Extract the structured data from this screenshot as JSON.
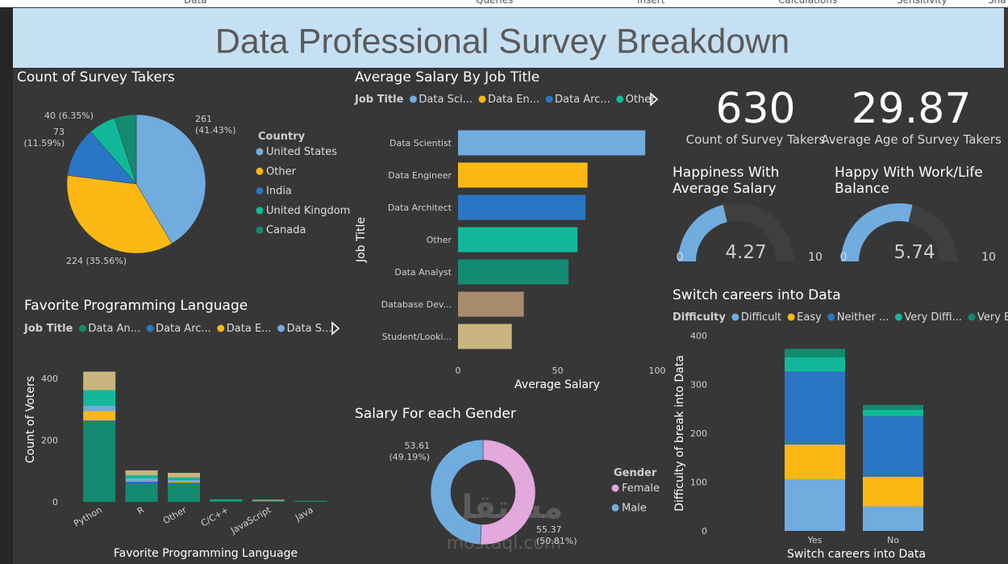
{
  "menu": [
    "Data",
    "Queries",
    "Insert",
    "Calculations",
    "Sensitivity",
    "Sha"
  ],
  "title": "Data Professional Survey Breakdown",
  "watermark": [
    "مستقل",
    "mostaql.com"
  ],
  "chart_data": [
    {
      "type": "pie",
      "title": "Count of Survey Takers",
      "legend_title": "Country",
      "categories": [
        "United States",
        "Other",
        "India",
        "United Kingdom",
        "Canada"
      ],
      "values": [
        261,
        224,
        73,
        40,
        32
      ],
      "value_labels": [
        "261 (41.43%)",
        "224 (35.56%)",
        "73 (11.59%)",
        "40 (6.35%)",
        null
      ],
      "colors": [
        "#71acdf",
        "#fdb813",
        "#2a76c4",
        "#11b99a",
        "#148a70"
      ]
    },
    {
      "type": "bar",
      "orientation": "horizontal",
      "title": "Average Salary By Job Title",
      "legend_title": "Job Title",
      "legend": [
        {
          "name": "Data Sci...",
          "color": "#71acdf"
        },
        {
          "name": "Data En...",
          "color": "#fdb813"
        },
        {
          "name": "Data Arc...",
          "color": "#2a76c4"
        },
        {
          "name": "Other",
          "color": "#11b99a"
        }
      ],
      "categories": [
        "Data Scientist",
        "Data Engineer",
        "Data Architect",
        "Other",
        "Data Analyst",
        "Database Dev...",
        "Student/Looki..."
      ],
      "values": [
        94,
        65,
        64,
        60,
        55.5,
        33,
        27
      ],
      "colors": [
        "#71acdf",
        "#fdb813",
        "#2a76c4",
        "#11b99a",
        "#148a70",
        "#a88a6d",
        "#c9b47f"
      ],
      "xlim": [
        0,
        100
      ],
      "xticks": [
        0,
        50,
        100
      ],
      "xlabel": "Average Salary",
      "ylabel": "Job Title"
    },
    {
      "type": "stacked_bar",
      "title": "Favorite Programming Language",
      "legend_title": "Job Title",
      "categories": [
        "Python",
        "R",
        "Other",
        "C/C++",
        "JavaScript",
        "Java"
      ],
      "series": [
        {
          "name": "Data An...",
          "color": "#148a70",
          "values": [
            259,
            62,
            58,
            5,
            4,
            2
          ]
        },
        {
          "name": "Data Arc...",
          "color": "#2a76c4",
          "values": [
            5,
            4,
            4,
            0,
            0,
            0
          ]
        },
        {
          "name": "Data E...",
          "color": "#fdb813",
          "values": [
            30,
            2,
            3,
            0,
            0,
            0
          ]
        },
        {
          "name": "Data S...",
          "color": "#71acdf",
          "values": [
            18,
            8,
            6,
            0,
            0,
            0
          ]
        },
        {
          "color": "#11b99a",
          "values": [
            50,
            10,
            8,
            3,
            0,
            1
          ]
        },
        {
          "color": "#c9b47f",
          "values": [
            60,
            16,
            15,
            0,
            3,
            0
          ]
        }
      ],
      "ylim": [
        0,
        440
      ],
      "yticks": [
        0,
        200,
        400
      ],
      "xlabel": "Favorite Programming Language",
      "ylabel": "Count of Voters"
    },
    {
      "type": "donut",
      "title": "Salary For each Gender",
      "legend_title": "Gender",
      "categories": [
        "Female",
        "Male"
      ],
      "values": [
        55.37,
        53.61
      ],
      "value_labels": [
        "55.37 (50.81%)",
        "53.61 (49.19%)"
      ],
      "colors": [
        "#e3a8dc",
        "#71acdf"
      ]
    },
    {
      "type": "card",
      "value": 630,
      "label": "Count of Survey Takers"
    },
    {
      "type": "card",
      "value": 29.87,
      "label": "Average Age of Survey Takers"
    },
    {
      "type": "gauge",
      "title": "Happiness With Average Salary",
      "value": 4.27,
      "min": 0,
      "max": 10,
      "color": "#71acdf"
    },
    {
      "type": "gauge",
      "title": "Happy With Work/Life Balance",
      "value": 5.74,
      "min": 0,
      "max": 10,
      "color": "#71acdf"
    },
    {
      "type": "stacked_bar",
      "title": "Switch careers into Data",
      "legend_title": "Difficulty",
      "categories": [
        "Yes",
        "No"
      ],
      "series": [
        {
          "name": "Difficult",
          "color": "#71acdf",
          "values": [
            106,
            50
          ]
        },
        {
          "name": "Easy",
          "color": "#fdb813",
          "values": [
            71,
            61
          ]
        },
        {
          "name": "Neither ...",
          "color": "#2a76c4",
          "values": [
            149,
            124
          ]
        },
        {
          "name": "Very Diffi...",
          "color": "#11b99a",
          "values": [
            30,
            13
          ]
        },
        {
          "name": "Very E...",
          "color": "#148a70",
          "values": [
            17,
            10
          ]
        }
      ],
      "ylim": [
        0,
        410
      ],
      "yticks": [
        0,
        100,
        200,
        300,
        400
      ],
      "xlabel": "Switch careers into Data",
      "ylabel": "Difficulty of break into Data"
    }
  ]
}
